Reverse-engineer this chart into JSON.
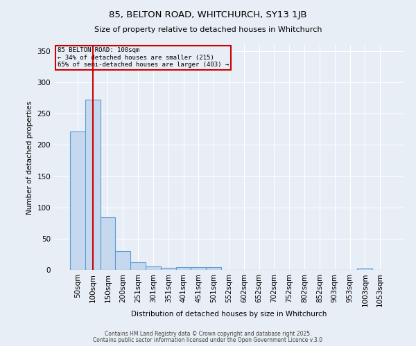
{
  "title1": "85, BELTON ROAD, WHITCHURCH, SY13 1JB",
  "title2": "Size of property relative to detached houses in Whitchurch",
  "xlabel": "Distribution of detached houses by size in Whitchurch",
  "ylabel": "Number of detached properties",
  "categories": [
    "50sqm",
    "100sqm",
    "150sqm",
    "200sqm",
    "251sqm",
    "301sqm",
    "351sqm",
    "401sqm",
    "451sqm",
    "501sqm",
    "552sqm",
    "602sqm",
    "652sqm",
    "702sqm",
    "752sqm",
    "802sqm",
    "852sqm",
    "903sqm",
    "953sqm",
    "1003sqm",
    "1053sqm"
  ],
  "values": [
    222,
    272,
    84,
    30,
    12,
    5,
    3,
    4,
    4,
    4,
    0,
    0,
    0,
    0,
    0,
    0,
    0,
    0,
    0,
    2,
    0
  ],
  "bar_color": "#c5d8ed",
  "bar_edge_color": "#5b9bd5",
  "red_line_index": 1,
  "annotation_title": "85 BELTON ROAD: 100sqm",
  "annotation_line2": "← 34% of detached houses are smaller (215)",
  "annotation_line3": "65% of semi-detached houses are larger (403) →",
  "annotation_box_color": "#cc0000",
  "ylim": [
    0,
    360
  ],
  "yticks": [
    0,
    50,
    100,
    150,
    200,
    250,
    300,
    350
  ],
  "background_color": "#e8eef5",
  "footer1": "Contains HM Land Registry data © Crown copyright and database right 2025.",
  "footer2": "Contains public sector information licensed under the Open Government Licence v.3.0"
}
